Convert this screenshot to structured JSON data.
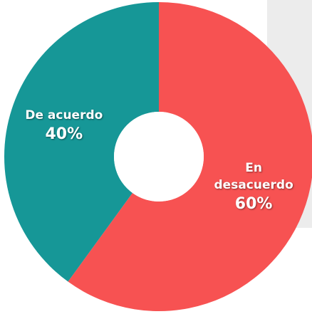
{
  "chart_data": {
    "type": "donut",
    "categories": [
      "De acuerdo",
      "En desacuerdo"
    ],
    "values": [
      40,
      60
    ],
    "value_labels": [
      "40%",
      "60%"
    ],
    "colors": [
      "#169797",
      "#f75252"
    ]
  }
}
